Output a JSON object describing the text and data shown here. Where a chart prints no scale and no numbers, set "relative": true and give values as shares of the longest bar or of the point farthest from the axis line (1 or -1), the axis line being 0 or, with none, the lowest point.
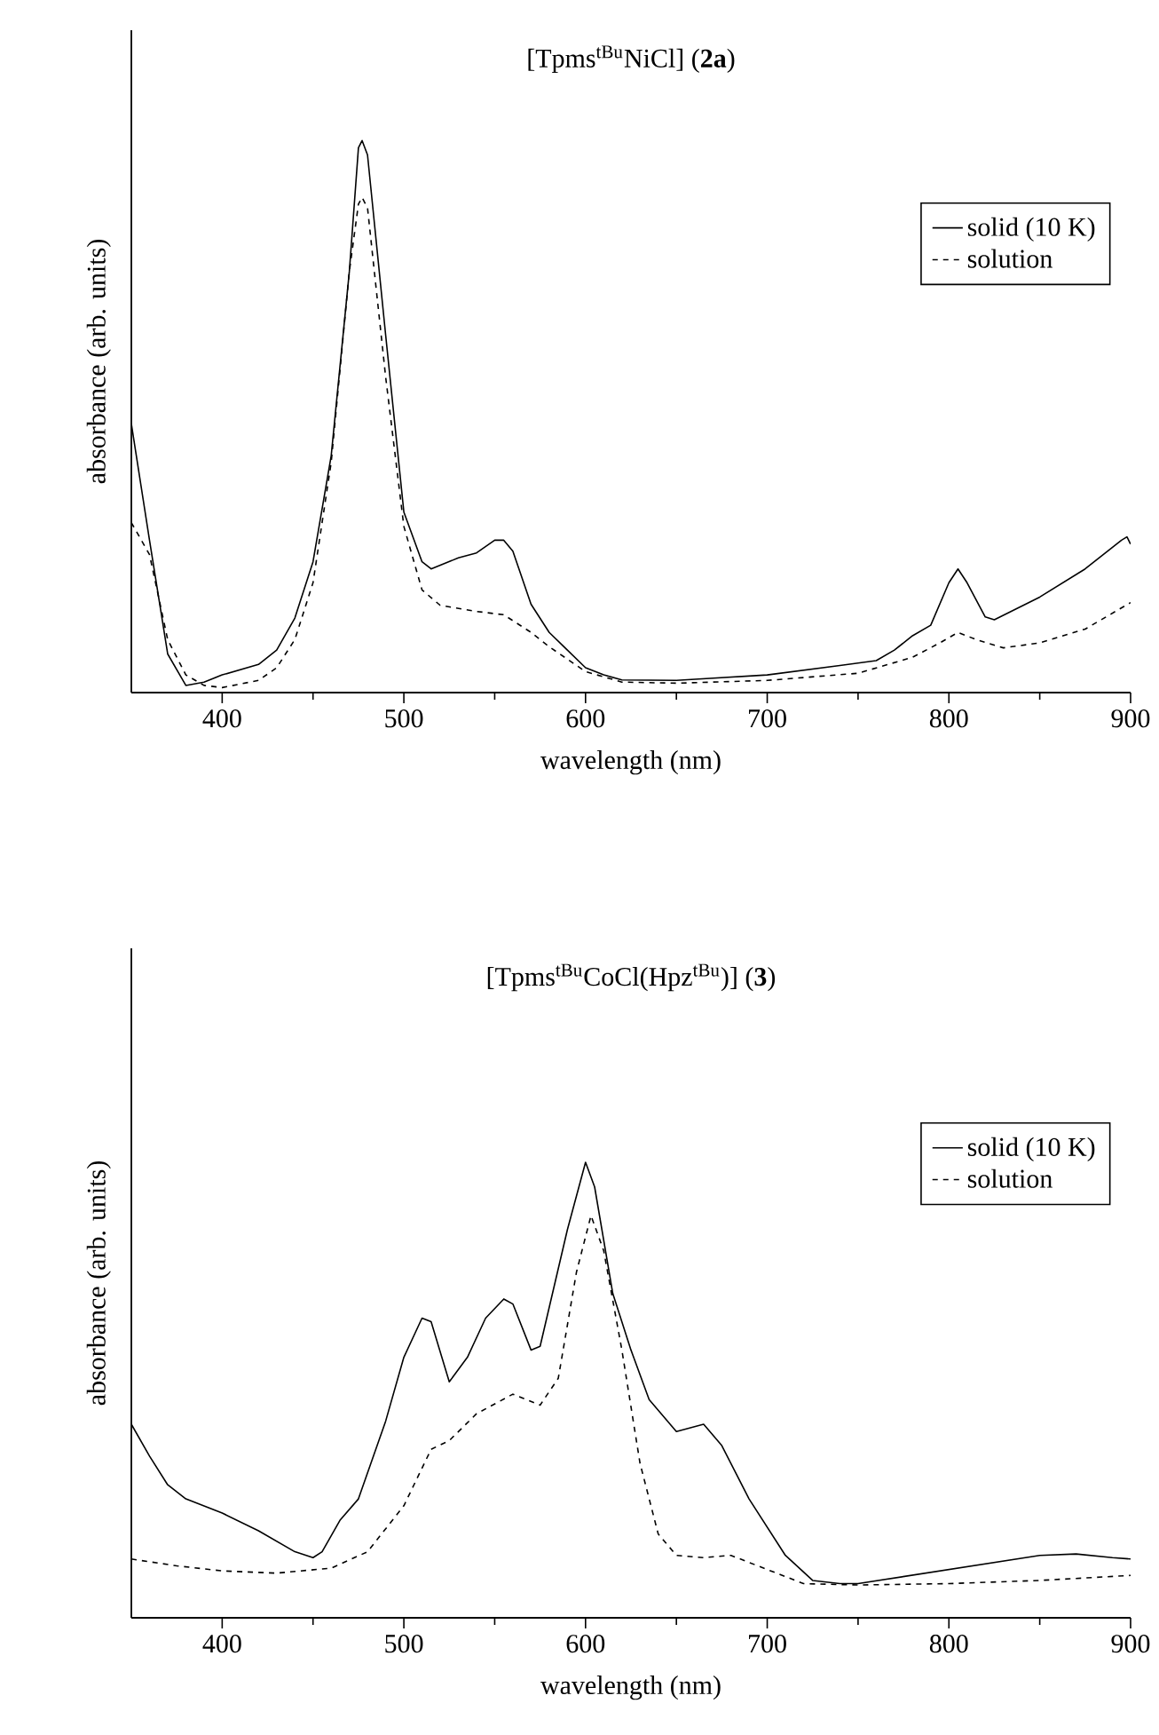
{
  "chart_data": [
    {
      "type": "line",
      "title": "[Tpms$^{tBu}$NiCl] (**2a**)",
      "xlabel": "wavelength (nm)",
      "ylabel": "absorbance (arb. units)",
      "relative": true,
      "xlim": [
        350,
        900
      ],
      "xticks": [
        400,
        500,
        600,
        700,
        800,
        900
      ],
      "tick_labels": "x",
      "legend": "top right",
      "series": [
        {
          "name": "solid (10 K)",
          "color": "#000000",
          "line_style": "solid",
          "x": [
            350,
            360,
            370,
            380,
            390,
            400,
            420,
            430,
            440,
            450,
            460,
            470,
            475,
            477,
            480,
            490,
            500,
            510,
            515,
            530,
            540,
            550,
            555,
            560,
            570,
            580,
            590,
            600,
            610,
            620,
            650,
            700,
            740,
            760,
            770,
            780,
            790,
            800,
            805,
            810,
            820,
            825,
            850,
            875,
            895,
            898,
            900
          ],
          "values": [
            0.487,
            0.276,
            0.07,
            0.013,
            0.019,
            0.032,
            0.051,
            0.077,
            0.135,
            0.237,
            0.429,
            0.763,
            0.987,
            1.0,
            0.974,
            0.647,
            0.327,
            0.237,
            0.224,
            0.244,
            0.253,
            0.276,
            0.276,
            0.256,
            0.16,
            0.109,
            0.077,
            0.045,
            0.032,
            0.023,
            0.022,
            0.032,
            0.049,
            0.058,
            0.077,
            0.103,
            0.122,
            0.199,
            0.224,
            0.199,
            0.137,
            0.132,
            0.173,
            0.224,
            0.276,
            0.282,
            0.269
          ]
        },
        {
          "name": "solution",
          "color": "#000000",
          "line_style": "dashed",
          "x": [
            350,
            360,
            370,
            380,
            390,
            400,
            420,
            430,
            440,
            450,
            460,
            470,
            475,
            477,
            480,
            490,
            500,
            510,
            520,
            540,
            555,
            570,
            580,
            600,
            620,
            650,
            700,
            750,
            780,
            795,
            805,
            815,
            830,
            850,
            875,
            900
          ],
          "values": [
            0.308,
            0.25,
            0.096,
            0.032,
            0.013,
            0.009,
            0.022,
            0.045,
            0.096,
            0.199,
            0.417,
            0.763,
            0.885,
            0.897,
            0.878,
            0.571,
            0.301,
            0.186,
            0.158,
            0.147,
            0.141,
            0.109,
            0.083,
            0.038,
            0.019,
            0.017,
            0.022,
            0.035,
            0.064,
            0.09,
            0.109,
            0.096,
            0.081,
            0.09,
            0.115,
            0.163
          ]
        }
      ]
    },
    {
      "type": "line",
      "title": "[Tpms$^{tBu}$CoCl(Hpz$^{tBu}$)] (**3**)",
      "xlabel": "wavelength (nm)",
      "ylabel": "absorbance (arb. units)",
      "relative": true,
      "xlim": [
        350,
        900
      ],
      "xticks": [
        400,
        500,
        600,
        700,
        800,
        900
      ],
      "tick_labels": "x",
      "legend": "top right",
      "series": [
        {
          "name": "solid (10 K)",
          "color": "#000000",
          "line_style": "solid",
          "x": [
            350,
            360,
            370,
            380,
            400,
            420,
            440,
            450,
            455,
            465,
            475,
            490,
            500,
            510,
            515,
            525,
            535,
            545,
            555,
            560,
            570,
            575,
            590,
            600,
            605,
            615,
            625,
            635,
            650,
            665,
            675,
            690,
            710,
            725,
            740,
            750,
            800,
            850,
            870,
            890,
            900
          ],
          "values": [
            0.425,
            0.355,
            0.292,
            0.261,
            0.23,
            0.191,
            0.145,
            0.132,
            0.145,
            0.215,
            0.261,
            0.432,
            0.572,
            0.658,
            0.65,
            0.518,
            0.572,
            0.658,
            0.7,
            0.689,
            0.588,
            0.596,
            0.852,
            1.0,
            0.946,
            0.712,
            0.588,
            0.479,
            0.409,
            0.425,
            0.378,
            0.261,
            0.137,
            0.082,
            0.075,
            0.075,
            0.106,
            0.137,
            0.14,
            0.132,
            0.129
          ]
        },
        {
          "name": "solution",
          "color": "#000000",
          "line_style": "dashed",
          "x": [
            350,
            375,
            400,
            430,
            460,
            480,
            500,
            515,
            525,
            540,
            560,
            575,
            585,
            595,
            603,
            610,
            620,
            630,
            640,
            650,
            665,
            680,
            700,
            720,
            750,
            800,
            850,
            900
          ],
          "values": [
            0.129,
            0.114,
            0.103,
            0.098,
            0.109,
            0.145,
            0.246,
            0.37,
            0.389,
            0.448,
            0.491,
            0.467,
            0.526,
            0.759,
            0.883,
            0.806,
            0.588,
            0.339,
            0.184,
            0.137,
            0.132,
            0.137,
            0.106,
            0.075,
            0.072,
            0.075,
            0.082,
            0.093
          ]
        }
      ]
    }
  ]
}
